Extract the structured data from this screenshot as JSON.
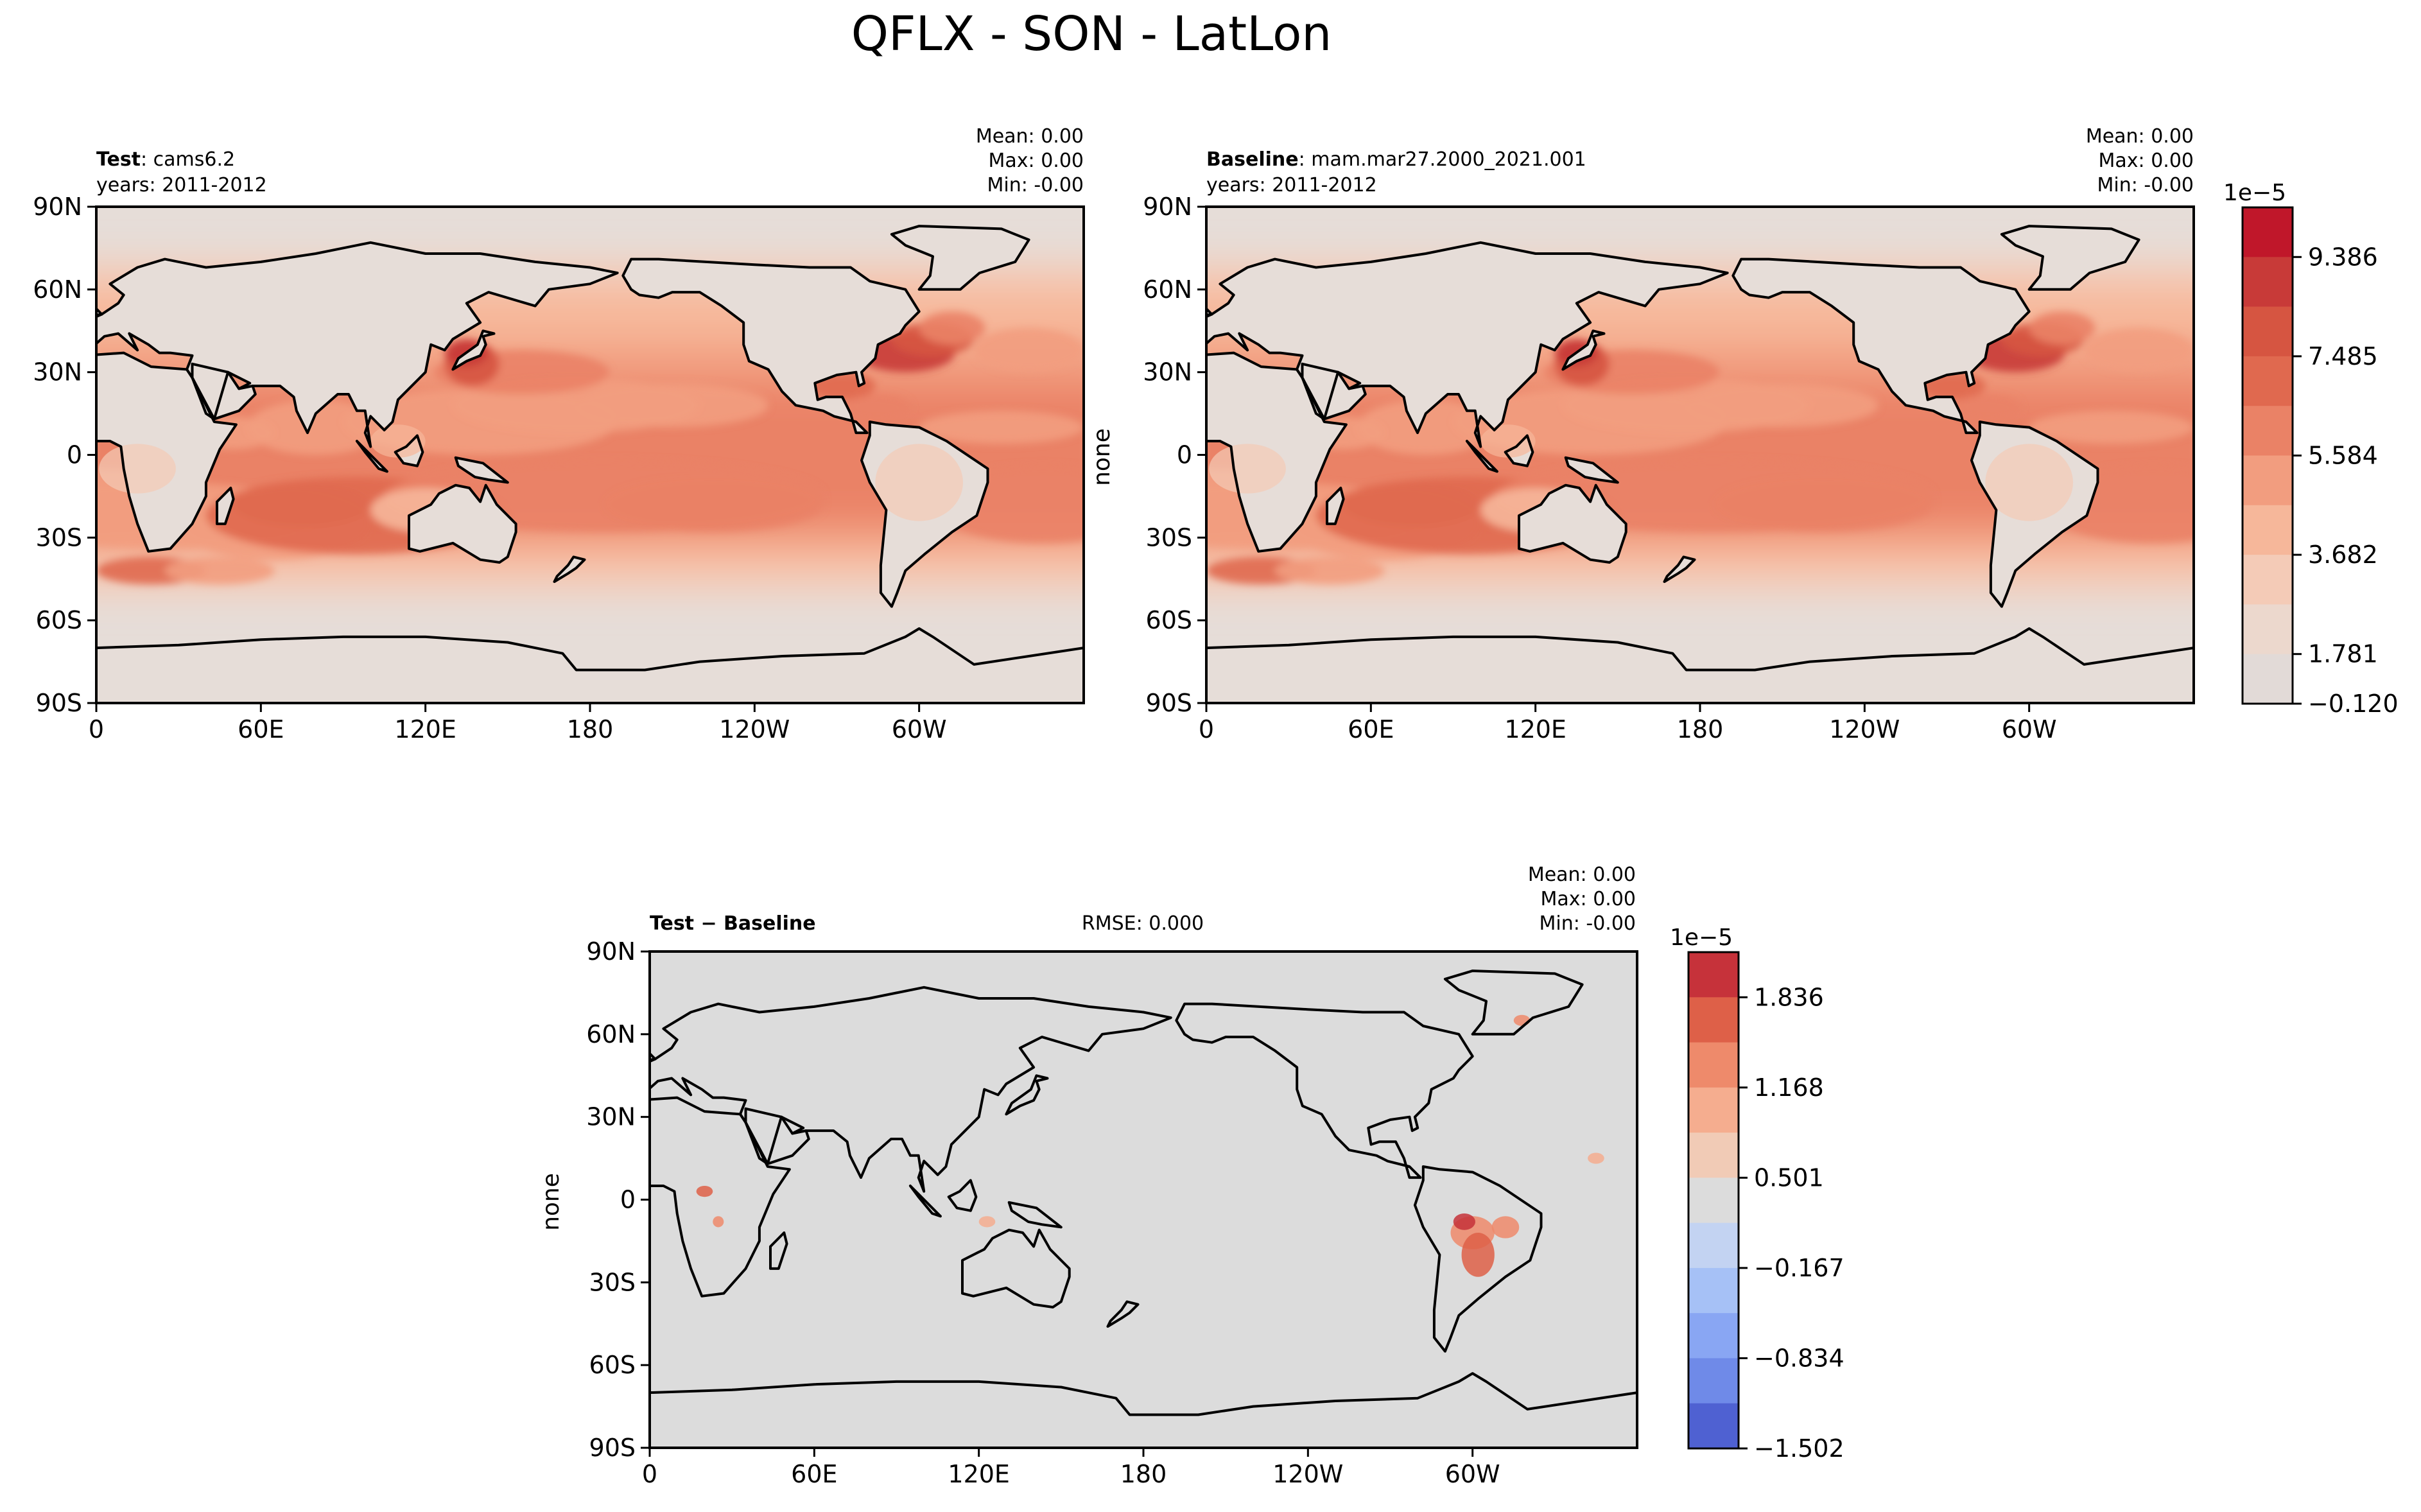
{
  "figure": {
    "title": "QFLX - SON - LatLon"
  },
  "chart_data": [
    {
      "type": "heatmap",
      "panel": "test",
      "label_bold": "Test",
      "label_rest": ": cams6.2",
      "years": "years: 2011-2012",
      "stats": [
        "Mean:  0.00",
        "Max:  0.00",
        "Min: -0.00"
      ],
      "ylabel": "",
      "x_ticks": [
        "0",
        "60E",
        "120E",
        "180",
        "120W",
        "60W"
      ],
      "y_ticks": [
        "90N",
        "60N",
        "30N",
        "0",
        "30S",
        "60S",
        "90S"
      ],
      "xlim": [
        0,
        360
      ],
      "ylim": [
        -90,
        90
      ]
    },
    {
      "type": "heatmap",
      "panel": "baseline",
      "label_bold": "Baseline",
      "label_rest": ": mam.mar27.2000_2021.001",
      "years": "years: 2011-2012",
      "stats": [
        "Mean:  0.00",
        "Max:  0.00",
        "Min: -0.00"
      ],
      "ylabel": "none",
      "x_ticks": [
        "0",
        "60E",
        "120E",
        "180",
        "120W",
        "60W"
      ],
      "y_ticks": [
        "90N",
        "60N",
        "30N",
        "0",
        "30S",
        "60S",
        "90S"
      ],
      "xlim": [
        0,
        360
      ],
      "ylim": [
        -90,
        90
      ],
      "colorbar": {
        "exponent": "1e−5",
        "tick_labels": [
          "9.386",
          "7.485",
          "5.584",
          "3.682",
          "1.781",
          "−0.120"
        ],
        "colors": [
          "#c0172a",
          "#c83a38",
          "#d65541",
          "#e0694f",
          "#ea8266",
          "#f29d7f",
          "#f6b79a",
          "#f4cbb7",
          "#ecd8cd",
          "#e2dad7"
        ]
      }
    },
    {
      "type": "heatmap",
      "panel": "difference",
      "label_bold": "Test − Baseline",
      "rmse": "RMSE: 0.000",
      "stats": [
        "Mean:  0.00",
        "Max:  0.00",
        "Min: -0.00"
      ],
      "ylabel": "none",
      "x_ticks": [
        "0",
        "60E",
        "120E",
        "180",
        "120W",
        "60W"
      ],
      "y_ticks": [
        "90N",
        "60N",
        "30N",
        "0",
        "30S",
        "60S",
        "90S"
      ],
      "xlim": [
        0,
        360
      ],
      "ylim": [
        -90,
        90
      ],
      "colorbar": {
        "exponent": "1e−5",
        "tick_labels": [
          "1.836",
          "1.168",
          "0.501",
          "−0.167",
          "−0.834",
          "−1.502"
        ],
        "colors": [
          "#c6323a",
          "#de6048",
          "#ee8a6b",
          "#f5ad8f",
          "#f1cbb6",
          "#dcdcdc",
          "#c3d3f2",
          "#a6c1f6",
          "#89a6f3",
          "#6f8ae8",
          "#4f61d2"
        ]
      }
    }
  ]
}
